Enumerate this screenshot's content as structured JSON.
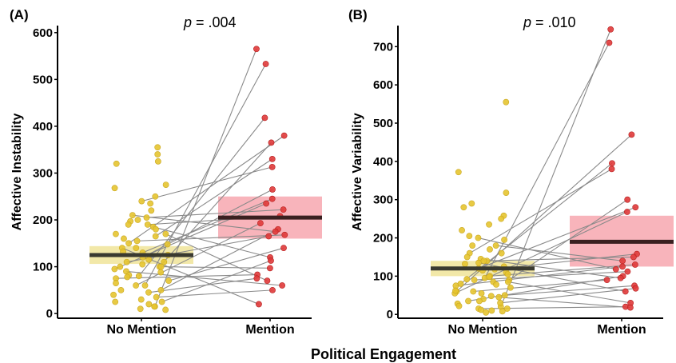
{
  "figure": {
    "xlabel": "Political Engagement"
  },
  "chart_data": [
    {
      "type": "scatter",
      "panel_label": "(A)",
      "p_label": "p",
      "p_value": "= .004",
      "ylabel": "Affective Instability",
      "categories": [
        "No Mention",
        "Mention"
      ],
      "ylim": [
        -10,
        615
      ],
      "yticks": [
        0,
        100,
        200,
        300,
        400,
        500,
        600
      ],
      "colors": {
        "No Mention": "#e6c430",
        "Mention": "#e03a3a",
        "line": "#8a8a8a"
      },
      "summary": [
        {
          "group": "No Mention",
          "mean": 125,
          "ci": [
            106,
            144
          ],
          "fill": "#f2e8a8"
        },
        {
          "group": "Mention",
          "mean": 205,
          "ci": [
            160,
            250
          ],
          "fill": "#f8b4bb"
        }
      ],
      "pairs": [
        [
          15,
          565
        ],
        [
          60,
          533
        ],
        [
          80,
          418
        ],
        [
          150,
          380
        ],
        [
          100,
          365
        ],
        [
          165,
          330
        ],
        [
          240,
          313
        ],
        [
          120,
          265
        ],
        [
          130,
          245
        ],
        [
          95,
          235
        ],
        [
          205,
          222
        ],
        [
          190,
          208
        ],
        [
          60,
          193
        ],
        [
          50,
          180
        ],
        [
          210,
          175
        ],
        [
          155,
          168
        ],
        [
          110,
          165
        ],
        [
          70,
          140
        ],
        [
          185,
          120
        ],
        [
          25,
          113
        ],
        [
          100,
          97
        ],
        [
          75,
          83
        ],
        [
          45,
          75
        ],
        [
          170,
          70
        ],
        [
          90,
          60
        ],
        [
          35,
          50
        ],
        [
          140,
          20
        ]
      ],
      "no_mention_only": [
        355,
        340,
        320,
        325,
        275,
        268,
        250,
        235,
        220,
        200,
        197,
        190,
        180,
        170,
        160,
        148,
        140,
        132,
        125,
        115,
        110,
        105,
        100,
        88,
        82,
        78,
        65,
        50,
        40,
        30,
        25,
        20,
        15,
        10,
        8
      ]
    },
    {
      "type": "scatter",
      "panel_label": "(B)",
      "p_label": "p",
      "p_value": "= .010",
      "ylabel": "Affective Variability",
      "categories": [
        "No Mention",
        "Mention"
      ],
      "ylim": [
        -10,
        755
      ],
      "yticks": [
        0,
        100,
        200,
        300,
        400,
        500,
        600,
        700
      ],
      "colors": {
        "No Mention": "#e6c430",
        "Mention": "#e03a3a",
        "line": "#8a8a8a"
      },
      "summary": [
        {
          "group": "No Mention",
          "mean": 120,
          "ci": [
            100,
            140
          ],
          "fill": "#f2e8a8"
        },
        {
          "group": "Mention",
          "mean": 190,
          "ci": [
            125,
            258
          ],
          "fill": "#f8b4bb"
        }
      ],
      "pairs": [
        [
          20,
          745
        ],
        [
          95,
          710
        ],
        [
          60,
          470
        ],
        [
          80,
          395
        ],
        [
          160,
          380
        ],
        [
          90,
          300
        ],
        [
          120,
          280
        ],
        [
          55,
          268
        ],
        [
          115,
          158
        ],
        [
          140,
          150
        ],
        [
          180,
          140
        ],
        [
          100,
          130
        ],
        [
          75,
          125
        ],
        [
          200,
          118
        ],
        [
          90,
          112
        ],
        [
          35,
          100
        ],
        [
          145,
          95
        ],
        [
          60,
          90
        ],
        [
          50,
          75
        ],
        [
          30,
          68
        ],
        [
          135,
          60
        ],
        [
          85,
          30
        ],
        [
          15,
          20
        ],
        [
          45,
          18
        ]
      ],
      "no_mention_only": [
        555,
        372,
        318,
        290,
        280,
        258,
        250,
        235,
        220,
        205,
        195,
        180,
        170,
        160,
        150,
        140,
        132,
        125,
        118,
        110,
        105,
        98,
        92,
        85,
        78,
        70,
        62,
        55,
        48,
        40,
        35,
        28,
        22,
        15,
        10,
        8,
        5,
        12
      ]
    }
  ]
}
